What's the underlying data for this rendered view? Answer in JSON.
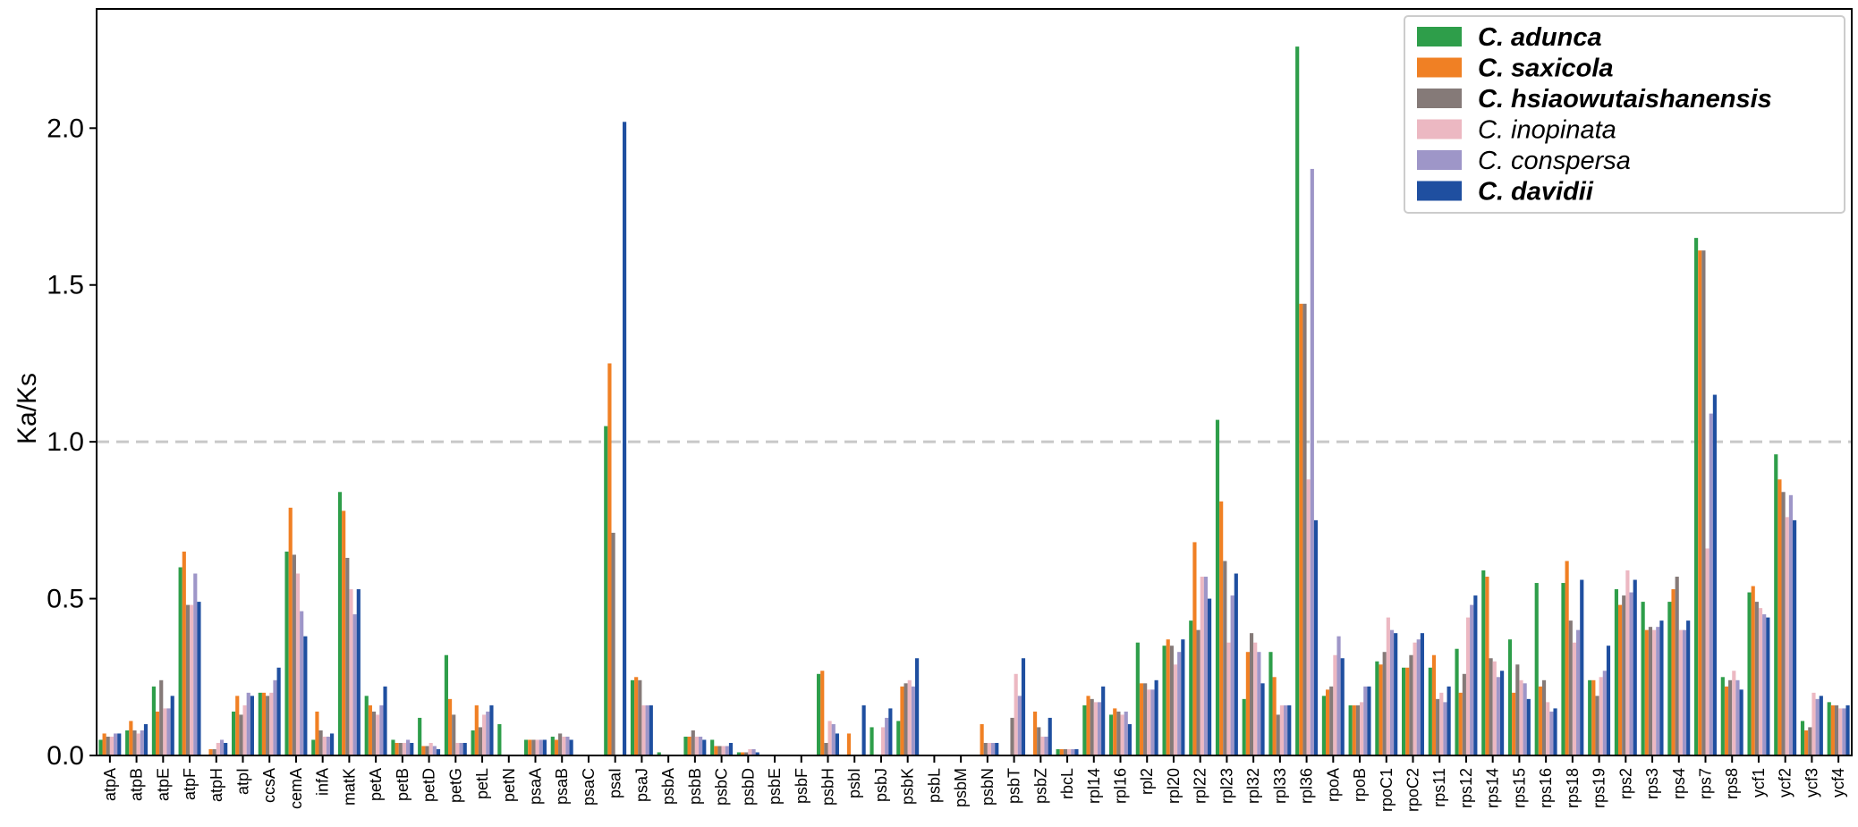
{
  "chart_data": {
    "type": "bar",
    "ylabel": "Ka/Ks",
    "xlabel": "",
    "ylim": [
      0,
      2.38
    ],
    "yticks": [
      "0.0",
      "0.5",
      "1.0",
      "1.5",
      "2.0"
    ],
    "ytick_values": [
      0,
      0.5,
      1.0,
      1.5,
      2.0
    ],
    "reference_line": 1.0,
    "legend_position": "top-right",
    "categories": [
      "atpA",
      "atpB",
      "atpE",
      "atpF",
      "atpH",
      "atpI",
      "ccsA",
      "cemA",
      "infA",
      "matK",
      "petA",
      "petB",
      "petD",
      "petG",
      "petL",
      "petN",
      "psaA",
      "psaB",
      "psaC",
      "psaI",
      "psaJ",
      "psbA",
      "psbB",
      "psbC",
      "psbD",
      "psbE",
      "psbF",
      "psbH",
      "psbI",
      "psbJ",
      "psbK",
      "psbL",
      "psbM",
      "psbN",
      "psbT",
      "psbZ",
      "rbcL",
      "rpl14",
      "rpl16",
      "rpl2",
      "rpl20",
      "rpl22",
      "rpl23",
      "rpl32",
      "rpl33",
      "rpl36",
      "rpoA",
      "rpoB",
      "rpoC1",
      "rpoC2",
      "rps11",
      "rps12",
      "rps14",
      "rps15",
      "rps16",
      "rps18",
      "rps19",
      "rps2",
      "rps3",
      "rps4",
      "rps7",
      "rps8",
      "ycf1",
      "ycf2",
      "ycf3",
      "ycf4"
    ],
    "series": [
      {
        "name": "C. adunca",
        "bold": true,
        "color": "#2e9e4a",
        "values": [
          0.05,
          0.08,
          0.22,
          0.6,
          0,
          0.14,
          0.2,
          0.65,
          0.05,
          0.84,
          0.19,
          0.05,
          0.12,
          0.32,
          0.08,
          0.1,
          0.05,
          0.06,
          0,
          1.05,
          0.24,
          0.01,
          0.06,
          0.05,
          0.01,
          0,
          0,
          0.26,
          0,
          0.09,
          0.11,
          0,
          0,
          0,
          0,
          0,
          0.02,
          0.16,
          0.13,
          0.36,
          0.35,
          0.43,
          1.07,
          0.18,
          0.33,
          2.26,
          0.19,
          0.16,
          0.3,
          0.28,
          0.28,
          0.34,
          0.59,
          0.37,
          0.55,
          0.55,
          0.24,
          0.53,
          0.49,
          0.49,
          1.65,
          0.25,
          0.52,
          0.96,
          0.11,
          0.17
        ]
      },
      {
        "name": "C. saxicola",
        "bold": true,
        "color": "#f08024",
        "values": [
          0.07,
          0.11,
          0.14,
          0.65,
          0.02,
          0.19,
          0.2,
          0.79,
          0.14,
          0.78,
          0.16,
          0.04,
          0.03,
          0.18,
          0.16,
          0,
          0.05,
          0.05,
          0,
          1.25,
          0.25,
          0,
          0.06,
          0.03,
          0.01,
          0,
          0,
          0.27,
          0.07,
          0,
          0.22,
          0,
          0,
          0.1,
          0,
          0.14,
          0.02,
          0.19,
          0.15,
          0.23,
          0.37,
          0.68,
          0.81,
          0.33,
          0.25,
          1.44,
          0.21,
          0.16,
          0.29,
          0.28,
          0.32,
          0.2,
          0.57,
          0.2,
          0.22,
          0.62,
          0.24,
          0.48,
          0.4,
          0.53,
          1.61,
          0.22,
          0.54,
          0.88,
          0.08,
          0.16
        ]
      },
      {
        "name": "C. hsiaowutaishanensis",
        "bold": true,
        "color": "#857a78",
        "values": [
          0.06,
          0.08,
          0.24,
          0.48,
          0.02,
          0.13,
          0.19,
          0.64,
          0.08,
          0.63,
          0.14,
          0.04,
          0.03,
          0.13,
          0.09,
          0,
          0.05,
          0.07,
          0,
          0.71,
          0.24,
          0,
          0.08,
          0.03,
          0.01,
          0,
          0,
          0.04,
          0,
          0,
          0.23,
          0,
          0,
          0.04,
          0.12,
          0.09,
          0.02,
          0.18,
          0.14,
          0.23,
          0.35,
          0.4,
          0.62,
          0.39,
          0.13,
          1.44,
          0.22,
          0.16,
          0.33,
          0.32,
          0.18,
          0.26,
          0.31,
          0.29,
          0.24,
          0.43,
          0.19,
          0.51,
          0.41,
          0.57,
          1.61,
          0.24,
          0.49,
          0.84,
          0.09,
          0.16
        ]
      },
      {
        "name": "C. inopinata",
        "bold": false,
        "color": "#ecb8c2",
        "values": [
          0.06,
          0.07,
          0.15,
          0.48,
          0.04,
          0.16,
          0.2,
          0.58,
          0.06,
          0.53,
          0.13,
          0.04,
          0.04,
          0.04,
          0.13,
          0,
          0.05,
          0.06,
          0,
          0,
          0.16,
          0,
          0.06,
          0.03,
          0.02,
          0,
          0,
          0.11,
          0,
          0.09,
          0.24,
          0,
          0,
          0.04,
          0.26,
          0.06,
          0.02,
          0.17,
          0.13,
          0.21,
          0.29,
          0.57,
          0.36,
          0.36,
          0.16,
          0.88,
          0.32,
          0.17,
          0.44,
          0.36,
          0.2,
          0.44,
          0.3,
          0.24,
          0.17,
          0.36,
          0.25,
          0.59,
          0.4,
          0.4,
          0.66,
          0.27,
          0.47,
          0.76,
          0.2,
          0.15
        ]
      },
      {
        "name": "C. conspersa",
        "bold": false,
        "color": "#9e96c8",
        "values": [
          0.07,
          0.08,
          0.15,
          0.58,
          0.05,
          0.2,
          0.24,
          0.46,
          0.06,
          0.45,
          0.16,
          0.05,
          0.03,
          0.04,
          0.14,
          0,
          0.05,
          0.06,
          0,
          0,
          0.16,
          0,
          0.06,
          0.03,
          0.02,
          0,
          0,
          0.1,
          0,
          0.12,
          0.22,
          0,
          0,
          0.04,
          0.19,
          0.06,
          0.02,
          0.17,
          0.14,
          0.21,
          0.33,
          0.57,
          0.51,
          0.33,
          0.16,
          1.87,
          0.38,
          0.22,
          0.4,
          0.37,
          0.17,
          0.48,
          0.25,
          0.23,
          0.14,
          0.4,
          0.27,
          0.52,
          0.41,
          0.4,
          1.09,
          0.24,
          0.45,
          0.83,
          0.18,
          0.15
        ]
      },
      {
        "name": "C. davidii",
        "bold": true,
        "color": "#1f4fa0",
        "values": [
          0.07,
          0.1,
          0.19,
          0.49,
          0.04,
          0.19,
          0.28,
          0.38,
          0.07,
          0.53,
          0.22,
          0.04,
          0.02,
          0.04,
          0.16,
          0,
          0.05,
          0.05,
          0,
          2.02,
          0.16,
          0,
          0.05,
          0.04,
          0.01,
          0,
          0,
          0.07,
          0.16,
          0.15,
          0.31,
          0,
          0,
          0.04,
          0.31,
          0.12,
          0.02,
          0.22,
          0.1,
          0.24,
          0.37,
          0.5,
          0.58,
          0.23,
          0.16,
          0.75,
          0.31,
          0.22,
          0.39,
          0.39,
          0.22,
          0.51,
          0.27,
          0.18,
          0.15,
          0.56,
          0.35,
          0.56,
          0.43,
          0.43,
          1.15,
          0.21,
          0.44,
          0.75,
          0.19,
          0.16
        ]
      }
    ]
  }
}
